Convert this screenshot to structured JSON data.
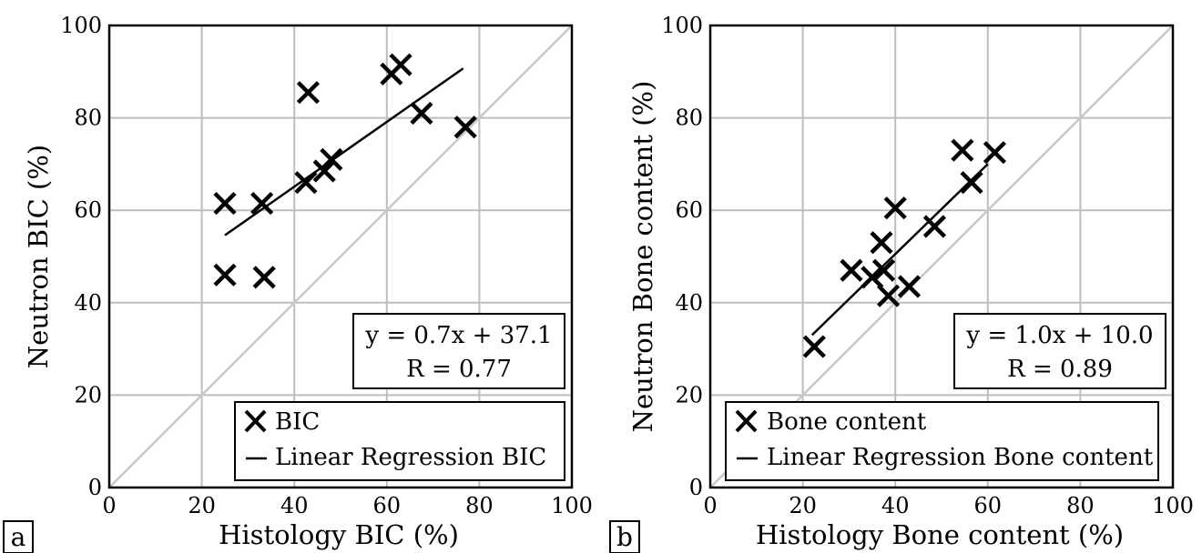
{
  "chart_data": [
    {
      "type": "scatter",
      "panel_label": "a",
      "xlabel": "Histology BIC (%)",
      "ylabel": "Neutron BIC (%)",
      "xlim": [
        0,
        100
      ],
      "ylim": [
        0,
        100
      ],
      "xticks": [
        0,
        20,
        40,
        60,
        80,
        100
      ],
      "yticks": [
        0,
        20,
        40,
        60,
        80,
        100
      ],
      "grid": true,
      "identity_line": true,
      "series": [
        {
          "name": "BIC",
          "marker": "x",
          "points": [
            [
              25,
              61.5
            ],
            [
              25,
              46
            ],
            [
              33,
              61.5
            ],
            [
              33.5,
              45.5
            ],
            [
              42.5,
              66
            ],
            [
              43,
              85.5
            ],
            [
              46.5,
              68.5
            ],
            [
              48,
              71
            ],
            [
              61,
              89.5
            ],
            [
              63,
              91.5
            ],
            [
              67.5,
              81
            ],
            [
              77,
              78
            ]
          ]
        },
        {
          "name": "Linear Regression BIC",
          "kind": "line",
          "x": [
            25,
            76.5
          ],
          "y": [
            54.6,
            90.7
          ]
        }
      ],
      "annotation": {
        "line1": "y = 0.7x + 37.1",
        "line2": "R = 0.77"
      },
      "legend_position": "bottom-right"
    },
    {
      "type": "scatter",
      "panel_label": "b",
      "xlabel": "Histology Bone content (%)",
      "ylabel": "Neutron Bone content (%)",
      "xlim": [
        0,
        100
      ],
      "ylim": [
        0,
        100
      ],
      "xticks": [
        0,
        20,
        40,
        60,
        80,
        100
      ],
      "yticks": [
        0,
        20,
        40,
        60,
        80,
        100
      ],
      "grid": true,
      "identity_line": true,
      "series": [
        {
          "name": "Bone content",
          "marker": "x",
          "points": [
            [
              22.5,
              30.5
            ],
            [
              30.5,
              47
            ],
            [
              35,
              45.5
            ],
            [
              37,
              53
            ],
            [
              37.5,
              47
            ],
            [
              38.5,
              41.5
            ],
            [
              40,
              60.5
            ],
            [
              43,
              43.5
            ],
            [
              48.5,
              56.5
            ],
            [
              54.5,
              73
            ],
            [
              56.5,
              66
            ],
            [
              61.5,
              72.5
            ]
          ]
        },
        {
          "name": "Linear Regression Bone content",
          "kind": "line",
          "x": [
            22,
            60
          ],
          "y": [
            33,
            70
          ]
        }
      ],
      "annotation": {
        "line1": "y = 1.0x + 10.0",
        "line2": "R = 0.89"
      },
      "legend_position": "bottom-right"
    }
  ]
}
